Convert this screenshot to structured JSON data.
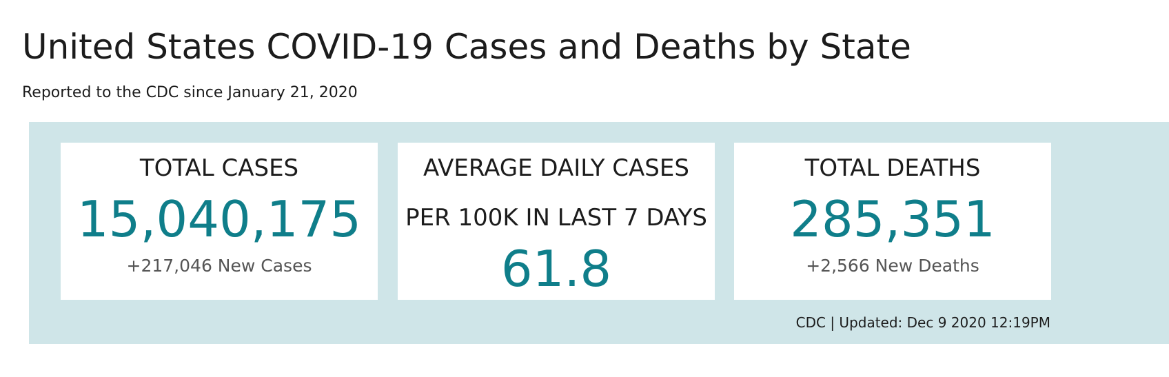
{
  "header": {
    "title": "United States COVID-19 Cases and Deaths by State",
    "subtitle": "Reported to the CDC since January 21, 2020"
  },
  "cards": [
    {
      "label": "TOTAL CASES",
      "value": "15,040,175",
      "sub": "+217,046 New Cases"
    },
    {
      "label": "AVERAGE DAILY CASES",
      "label2": "PER 100K IN LAST 7 DAYS",
      "value": "61.8"
    },
    {
      "label": "TOTAL DEATHS",
      "value": "285,351",
      "sub": "+2,566 New Deaths"
    }
  ],
  "footer": {
    "updated": "CDC | Updated: Dec 9 2020 12:19PM"
  },
  "colors": {
    "panel_background": "#cfe5e8",
    "value_accent": "#0f7e8a",
    "text": "#1c1c1c",
    "subtext": "#555555"
  }
}
